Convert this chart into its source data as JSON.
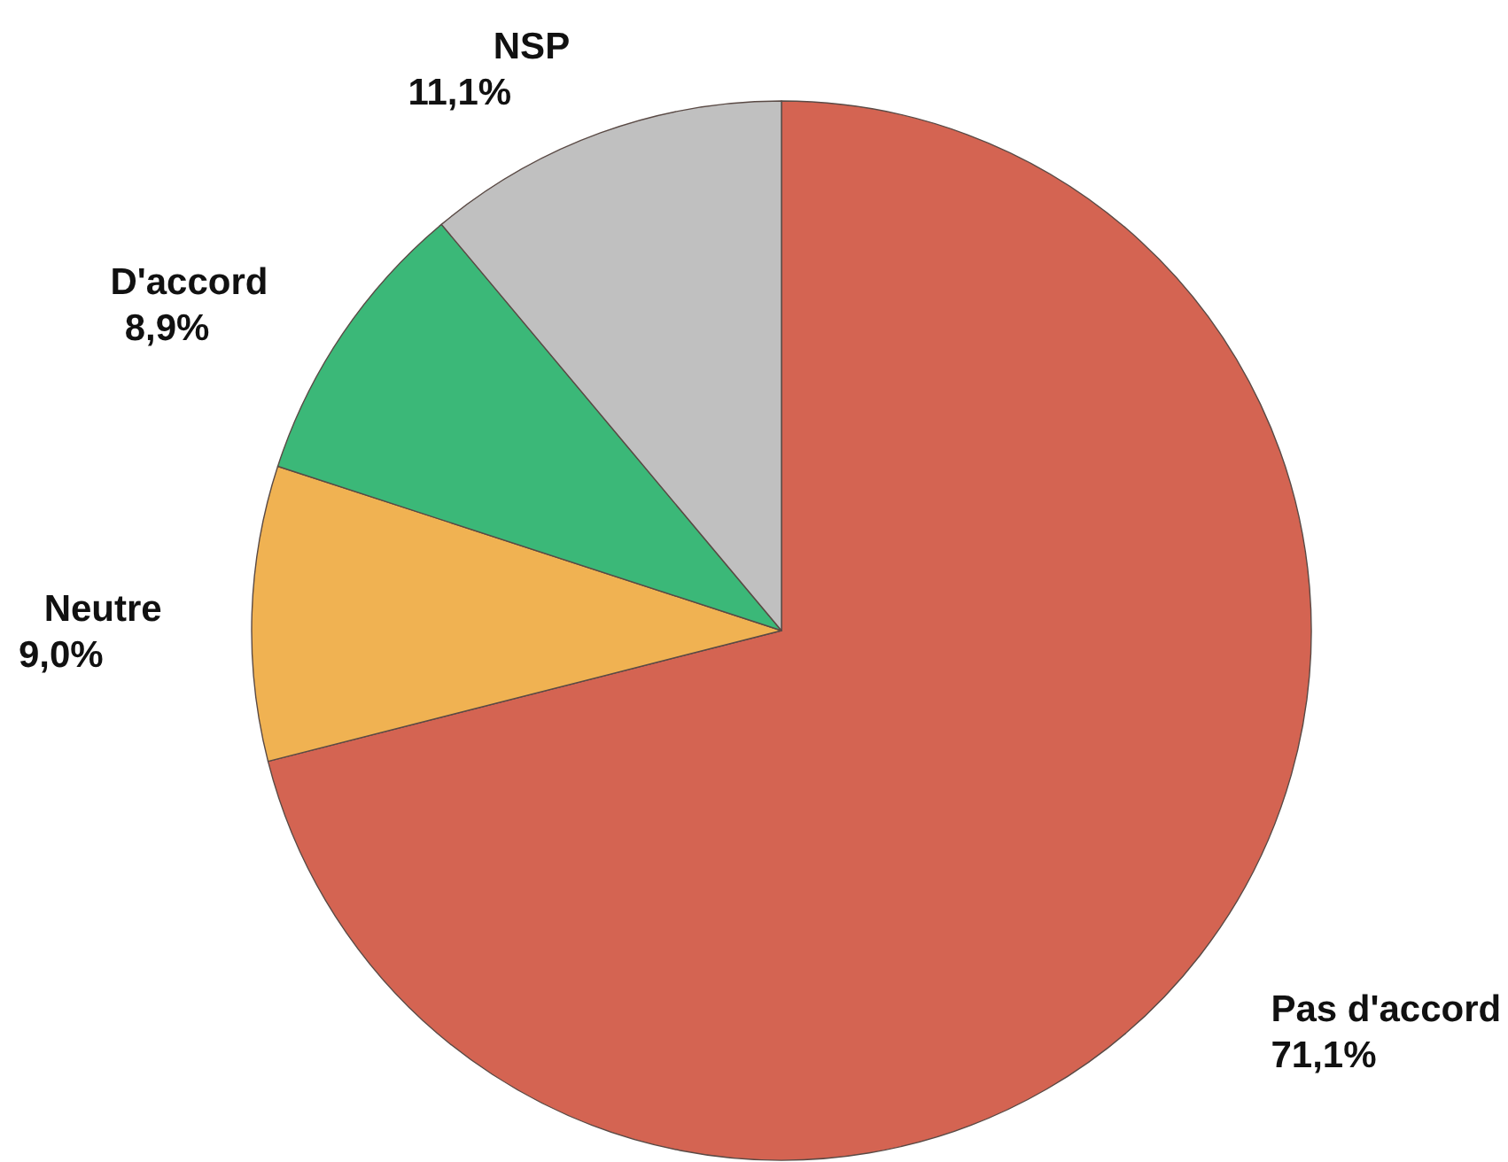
{
  "chart_data": {
    "type": "pie",
    "categories": [
      "Pas d'accord",
      "Neutre",
      "D'accord",
      "NSP"
    ],
    "values": [
      71.1,
      9.0,
      8.9,
      11.1
    ],
    "colors": [
      "#d46452",
      "#f0b252",
      "#3bb878",
      "#c0c0c0"
    ],
    "value_labels": [
      "71,1%",
      "9,0%",
      "8,9%",
      "11,1%"
    ]
  }
}
